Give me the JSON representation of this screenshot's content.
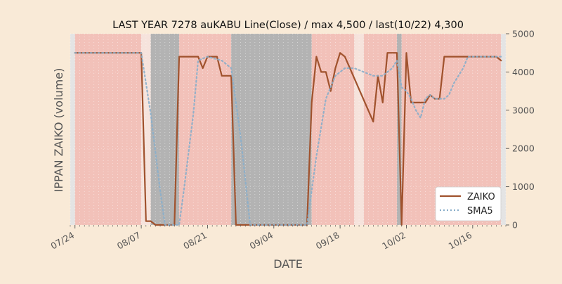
{
  "chart_data": {
    "type": "line",
    "title": "LAST YEAR 7278 auKABU Line(Close) / max 4,500 / last(10/22) 4,300",
    "xlabel": "DATE",
    "ylabel": "IPPAN ZAIKO (volume)",
    "ylim": [
      0,
      5000
    ],
    "yticks": [
      0,
      1000,
      2000,
      3000,
      4000,
      5000
    ],
    "ytick_labels": [
      "0",
      "1000",
      "2000",
      "3000",
      "4000",
      "5000"
    ],
    "y_axis_side": "right",
    "xlim": [
      "2020-07-23",
      "2020-10-23"
    ],
    "xticks": [
      "2020-07-24",
      "2020-08-07",
      "2020-08-21",
      "2020-09-04",
      "2020-09-18",
      "2020-10-02",
      "2020-10-16"
    ],
    "xtick_labels": [
      "07/24",
      "08/07",
      "08/21",
      "09/04",
      "09/18",
      "10/02",
      "10/16"
    ],
    "grid": true,
    "legend_position": "lower-right",
    "background_color": "#f9ead7",
    "plot_background_color": "#ede9e4",
    "spans": [
      {
        "start": "2020-07-23",
        "end": "2020-07-24",
        "color": "#e4e4e4"
      },
      {
        "start": "2020-07-24",
        "end": "2020-08-07",
        "color": "#f2c1b9"
      },
      {
        "start": "2020-08-07",
        "end": "2020-08-09",
        "color": "#f6e3dc"
      },
      {
        "start": "2020-08-09",
        "end": "2020-08-15",
        "color": "#b3b3b3"
      },
      {
        "start": "2020-08-15",
        "end": "2020-08-19",
        "color": "#f2c1b9"
      },
      {
        "start": "2020-08-19",
        "end": "2020-08-26",
        "color": "#f2c1b9"
      },
      {
        "start": "2020-08-26",
        "end": "2020-09-12",
        "color": "#b3b3b3"
      },
      {
        "start": "2020-09-12",
        "end": "2020-09-21",
        "color": "#f2c1b9"
      },
      {
        "start": "2020-09-21",
        "end": "2020-09-23",
        "color": "#f6e3dc"
      },
      {
        "start": "2020-09-23",
        "end": "2020-09-30",
        "color": "#f2c1b9"
      },
      {
        "start": "2020-09-30",
        "end": "2020-10-01",
        "color": "#b3b3b3"
      },
      {
        "start": "2020-10-01",
        "end": "2020-10-22",
        "color": "#f2c1b9"
      },
      {
        "start": "2020-10-22",
        "end": "2020-10-23",
        "color": "#e4e4e4"
      }
    ],
    "series": [
      {
        "name": "ZAIKO",
        "color": "#a0522d",
        "style": "solid",
        "x": [
          "2020-07-24",
          "2020-08-07",
          "2020-08-08",
          "2020-08-09",
          "2020-08-10",
          "2020-08-11",
          "2020-08-12",
          "2020-08-13",
          "2020-08-14",
          "2020-08-15",
          "2020-08-16",
          "2020-08-17",
          "2020-08-18",
          "2020-08-19",
          "2020-08-20",
          "2020-08-21",
          "2020-08-22",
          "2020-08-23",
          "2020-08-24",
          "2020-08-25",
          "2020-08-26",
          "2020-08-27",
          "2020-09-11",
          "2020-09-12",
          "2020-09-13",
          "2020-09-14",
          "2020-09-15",
          "2020-09-16",
          "2020-09-17",
          "2020-09-18",
          "2020-09-19",
          "2020-09-25",
          "2020-09-26",
          "2020-09-27",
          "2020-09-28",
          "2020-09-29",
          "2020-09-30",
          "2020-10-01",
          "2020-10-02",
          "2020-10-03",
          "2020-10-04",
          "2020-10-05",
          "2020-10-06",
          "2020-10-07",
          "2020-10-08",
          "2020-10-09",
          "2020-10-10",
          "2020-10-20",
          "2020-10-21",
          "2020-10-22"
        ],
        "values": [
          4500,
          4500,
          100,
          100,
          0,
          0,
          0,
          0,
          0,
          4400,
          4400,
          4400,
          4400,
          4400,
          4100,
          4400,
          4400,
          4400,
          3900,
          3900,
          3900,
          0,
          0,
          3200,
          4400,
          4000,
          4000,
          3500,
          4100,
          4500,
          4400,
          2700,
          3900,
          3200,
          4500,
          4500,
          4500,
          0,
          4500,
          3200,
          3200,
          3200,
          3200,
          3400,
          3300,
          3300,
          4400,
          4400,
          4400,
          4300
        ]
      },
      {
        "name": "SMA5",
        "color": "#8aaeca",
        "style": "dotted",
        "x": [
          "2020-07-24",
          "2020-08-07",
          "2020-08-09",
          "2020-08-11",
          "2020-08-12",
          "2020-08-13",
          "2020-08-14",
          "2020-08-15",
          "2020-08-16",
          "2020-08-18",
          "2020-08-19",
          "2020-08-21",
          "2020-08-24",
          "2020-08-25",
          "2020-08-26",
          "2020-08-28",
          "2020-08-30",
          "2020-09-10",
          "2020-09-11",
          "2020-09-13",
          "2020-09-15",
          "2020-09-17",
          "2020-09-19",
          "2020-09-21",
          "2020-09-23",
          "2020-09-25",
          "2020-09-27",
          "2020-09-29",
          "2020-09-30",
          "2020-10-01",
          "2020-10-02",
          "2020-10-03",
          "2020-10-04",
          "2020-10-05",
          "2020-10-06",
          "2020-10-07",
          "2020-10-08",
          "2020-10-09",
          "2020-10-10",
          "2020-10-11",
          "2020-10-12",
          "2020-10-13",
          "2020-10-14",
          "2020-10-15",
          "2020-10-22"
        ],
        "values": [
          4500,
          4500,
          2900,
          900,
          0,
          0,
          0,
          0,
          900,
          2900,
          4300,
          4400,
          4300,
          4200,
          4100,
          2300,
          0,
          0,
          0,
          1800,
          3300,
          3900,
          4100,
          4100,
          4000,
          3900,
          3900,
          4100,
          4300,
          3600,
          3500,
          3300,
          3000,
          2800,
          3300,
          3400,
          3300,
          3300,
          3300,
          3400,
          3700,
          3900,
          4100,
          4400,
          4400
        ]
      }
    ]
  }
}
